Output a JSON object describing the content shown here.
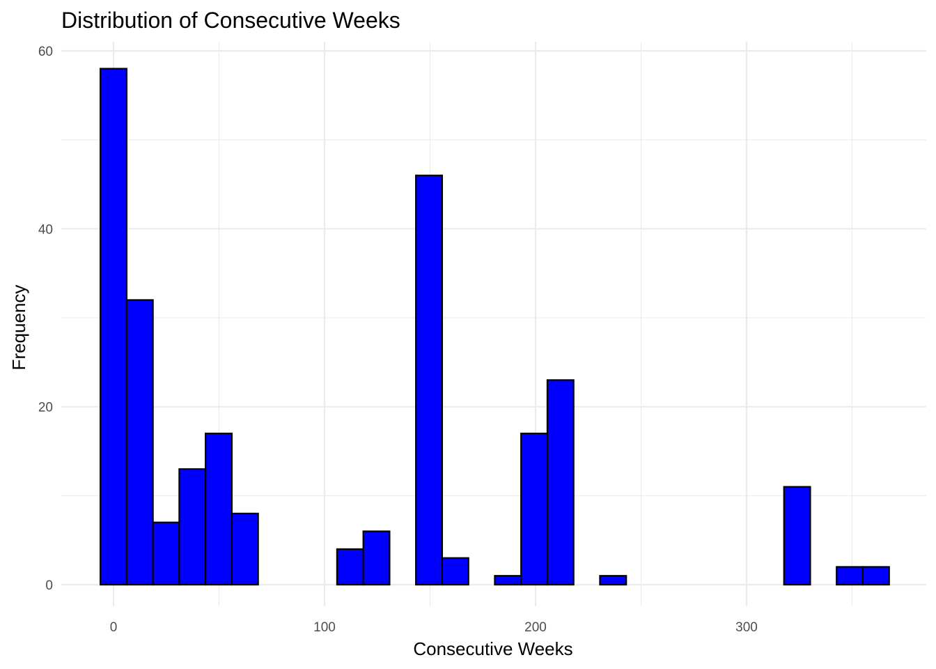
{
  "chart_data": {
    "type": "bar",
    "subtype": "histogram",
    "title": "Distribution of Consecutive Weeks",
    "xlabel": "Consecutive Weeks",
    "ylabel": "Frequency",
    "xlim": [
      -20,
      375
    ],
    "ylim": [
      -5,
      62
    ],
    "x_ticks": [
      0,
      100,
      200,
      300
    ],
    "y_ticks": [
      0,
      20,
      40,
      60
    ],
    "x_minor_ticks": [
      50,
      150,
      250,
      350
    ],
    "y_minor_ticks": [
      10,
      30,
      50
    ],
    "grid": true,
    "bin_width": 12.46,
    "bin_start": -6.23,
    "values": [
      58,
      32,
      7,
      13,
      17,
      8,
      0,
      0,
      0,
      4,
      6,
      0,
      46,
      3,
      0,
      1,
      17,
      23,
      0,
      1,
      0,
      0,
      0,
      0,
      0,
      0,
      11,
      0,
      2,
      2
    ],
    "fill_color": "#0000FF",
    "stroke_color": "#000000"
  }
}
